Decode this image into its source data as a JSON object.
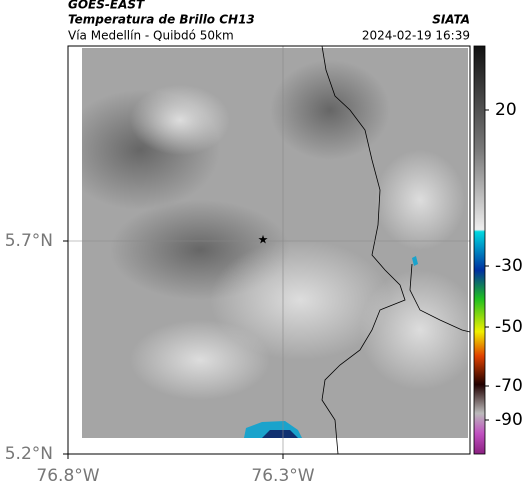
{
  "header": {
    "source": "GOES-EAST",
    "title": "Temperatura de Brillo CH13",
    "agency": "SIATA",
    "route": "Vía Medellín - Quibdó 50km",
    "timestamp": "2024-02-19 16:39"
  },
  "map": {
    "lat_labels": [
      "5.7°N",
      "5.2°N"
    ],
    "lon_labels": [
      "76.8°W",
      "76.3°W"
    ]
  },
  "colorbar": {
    "ticks": [
      "20",
      "-30",
      "-50",
      "-70",
      "-90"
    ]
  }
}
